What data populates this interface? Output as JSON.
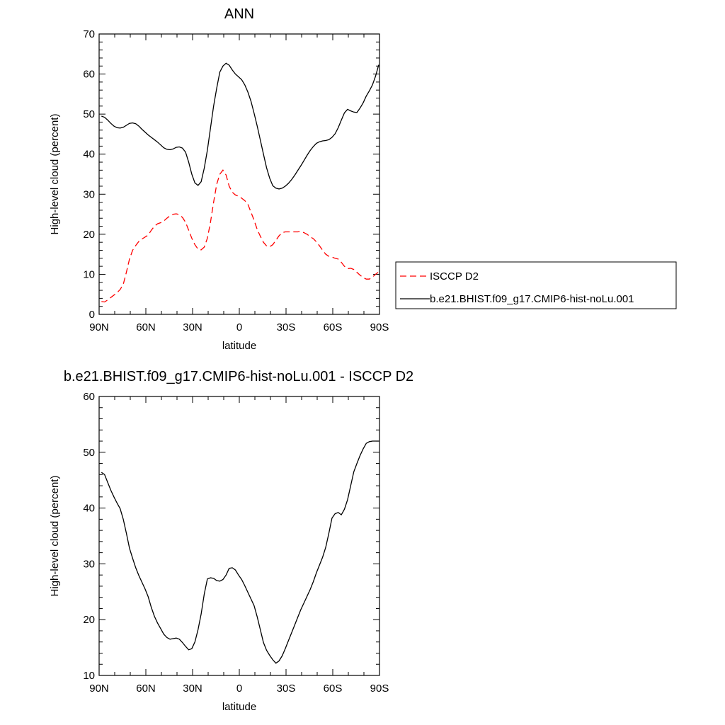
{
  "chart_data": [
    {
      "type": "line",
      "title": "ANN",
      "xlabel": "latitude",
      "ylabel": "High-level cloud (percent)",
      "xlim": [
        90,
        -90
      ],
      "ylim": [
        0,
        70
      ],
      "x_ticks": [
        90,
        60,
        30,
        0,
        -30,
        -60,
        -90
      ],
      "x_tick_labels": [
        "90N",
        "60N",
        "30N",
        "0",
        "30S",
        "60S",
        "90S"
      ],
      "y_ticks": [
        0,
        10,
        20,
        30,
        40,
        50,
        60,
        70
      ],
      "y_tick_labels": [
        "0",
        "10",
        "20",
        "30",
        "40",
        "50",
        "60",
        "70"
      ],
      "legend_position": "right",
      "x": [
        88.5,
        86.5,
        84.5,
        82.5,
        80.5,
        78.5,
        76.5,
        74.5,
        72.5,
        70.5,
        68.5,
        66.5,
        64.5,
        62.5,
        60.5,
        58.5,
        56.5,
        54.5,
        52.5,
        50.5,
        48.5,
        46.5,
        44.5,
        42.5,
        40.5,
        38.5,
        36.5,
        34.5,
        32.5,
        30.5,
        28.5,
        26.5,
        24.5,
        22.5,
        20.5,
        18.5,
        16.5,
        14.5,
        12.5,
        10.5,
        8.5,
        6.5,
        4.5,
        2.5,
        0.5,
        -1.5,
        -3.5,
        -5.5,
        -7.5,
        -9.5,
        -11.5,
        -13.5,
        -15.5,
        -17.5,
        -19.5,
        -21.5,
        -23.5,
        -25.5,
        -27.5,
        -29.5,
        -31.5,
        -33.5,
        -35.5,
        -37.5,
        -39.5,
        -41.5,
        -43.5,
        -45.5,
        -47.5,
        -49.5,
        -51.5,
        -53.5,
        -55.5,
        -57.5,
        -59.5,
        -61.5,
        -63.5,
        -65.5,
        -67.5,
        -69.5,
        -71.5,
        -73.5,
        -75.5,
        -77.5,
        -79.5,
        -81.5,
        -83.5,
        -85.5,
        -87.5,
        -89.5
      ],
      "series": [
        {
          "name": "ISCCP D2",
          "color": "#ff0000",
          "dash": "dashed",
          "values": [
            3.2,
            3.1,
            3.6,
            4.2,
            4.8,
            5.4,
            6.2,
            7.5,
            10.5,
            13.8,
            16.0,
            17.2,
            18.2,
            18.8,
            19.3,
            19.8,
            21.0,
            22.0,
            22.6,
            22.9,
            23.3,
            24.0,
            24.6,
            25.0,
            25.1,
            24.9,
            24.2,
            23.0,
            21.0,
            19.0,
            17.4,
            16.3,
            16.1,
            16.8,
            19.0,
            23.0,
            28.0,
            32.5,
            35.0,
            36.0,
            34.8,
            32.0,
            30.5,
            29.8,
            29.5,
            29.0,
            28.4,
            27.5,
            25.5,
            23.5,
            21.2,
            19.5,
            18.0,
            17.1,
            16.9,
            17.4,
            18.5,
            19.6,
            20.4,
            20.6,
            20.6,
            20.6,
            20.6,
            20.6,
            20.7,
            20.4,
            20.0,
            19.4,
            18.9,
            18.1,
            17.1,
            16.0,
            15.0,
            14.5,
            14.3,
            14.0,
            13.8,
            13.0,
            12.0,
            11.4,
            11.5,
            11.2,
            10.5,
            9.8,
            9.2,
            8.8,
            8.8,
            9.3,
            10.0,
            10.6
          ]
        },
        {
          "name": "b.e21.BHIST.f09_g17.CMIP6-hist-noLu.001",
          "color": "#000000",
          "dash": "solid",
          "values": [
            49.5,
            49.2,
            48.5,
            47.7,
            47.0,
            46.6,
            46.5,
            46.7,
            47.2,
            47.7,
            47.8,
            47.6,
            47.0,
            46.2,
            45.5,
            44.8,
            44.2,
            43.6,
            43.0,
            42.3,
            41.6,
            41.2,
            41.1,
            41.3,
            41.7,
            41.8,
            41.5,
            40.5,
            38.0,
            35.0,
            32.8,
            32.2,
            33.1,
            36.5,
            41.0,
            46.5,
            52.0,
            56.5,
            60.5,
            62.0,
            62.7,
            62.2,
            61.0,
            60.0,
            59.3,
            58.6,
            57.3,
            55.5,
            53.2,
            50.2,
            47.0,
            43.5,
            40.0,
            36.6,
            34.0,
            32.1,
            31.5,
            31.3,
            31.5,
            32.0,
            32.7,
            33.6,
            34.7,
            35.9,
            37.1,
            38.4,
            39.7,
            40.9,
            41.9,
            42.7,
            43.1,
            43.3,
            43.4,
            43.6,
            44.2,
            45.1,
            46.6,
            48.5,
            50.3,
            51.2,
            50.8,
            50.5,
            50.4,
            51.5,
            52.8,
            54.5,
            55.8,
            57.3,
            59.5,
            62.3
          ]
        }
      ]
    },
    {
      "type": "line",
      "title": "b.e21.BHIST.f09_g17.CMIP6-hist-noLu.001 - ISCCP D2",
      "xlabel": "latitude",
      "ylabel": "High-level cloud (percent)",
      "xlim": [
        90,
        -90
      ],
      "ylim": [
        10,
        60
      ],
      "x_ticks": [
        90,
        60,
        30,
        0,
        -30,
        -60,
        -90
      ],
      "x_tick_labels": [
        "90N",
        "60N",
        "30N",
        "0",
        "30S",
        "60S",
        "90S"
      ],
      "y_ticks": [
        10,
        20,
        30,
        40,
        50,
        60
      ],
      "y_tick_labels": [
        "10",
        "20",
        "30",
        "40",
        "50",
        "60"
      ],
      "x": [
        88.5,
        86.5,
        84.5,
        82.5,
        80.5,
        78.5,
        76.5,
        74.5,
        72.5,
        70.5,
        68.5,
        66.5,
        64.5,
        62.5,
        60.5,
        58.5,
        56.5,
        54.5,
        52.5,
        50.5,
        48.5,
        46.5,
        44.5,
        42.5,
        40.5,
        38.5,
        36.5,
        34.5,
        32.5,
        30.5,
        28.5,
        26.5,
        24.5,
        22.5,
        20.5,
        18.5,
        16.5,
        14.5,
        12.5,
        10.5,
        8.5,
        6.5,
        4.5,
        2.5,
        0.5,
        -1.5,
        -3.5,
        -5.5,
        -7.5,
        -9.5,
        -11.5,
        -13.5,
        -15.5,
        -17.5,
        -19.5,
        -21.5,
        -23.5,
        -25.5,
        -27.5,
        -29.5,
        -31.5,
        -33.5,
        -35.5,
        -37.5,
        -39.5,
        -41.5,
        -43.5,
        -45.5,
        -47.5,
        -49.5,
        -51.5,
        -53.5,
        -55.5,
        -57.5,
        -59.5,
        -61.5,
        -63.5,
        -65.5,
        -67.5,
        -69.5,
        -71.5,
        -73.5,
        -75.5,
        -77.5,
        -79.5,
        -81.5,
        -83.5,
        -85.5,
        -87.5,
        -89.5
      ],
      "series": [
        {
          "color": "#000000",
          "dash": "solid",
          "values": [
            46.4,
            46.0,
            44.6,
            43.2,
            42.0,
            40.9,
            39.9,
            38.0,
            35.5,
            32.8,
            31.0,
            29.3,
            27.9,
            26.7,
            25.5,
            24.1,
            22.2,
            20.6,
            19.4,
            18.4,
            17.4,
            16.8,
            16.5,
            16.6,
            16.7,
            16.5,
            15.9,
            15.2,
            14.6,
            14.8,
            16.0,
            18.2,
            21.0,
            24.6,
            27.3,
            27.5,
            27.4,
            27.0,
            26.9,
            27.2,
            28.0,
            29.2,
            29.3,
            28.9,
            28.0,
            27.2,
            26.1,
            24.9,
            23.7,
            22.5,
            20.5,
            18.2,
            15.9,
            14.5,
            13.6,
            12.8,
            12.2,
            12.6,
            13.5,
            14.8,
            16.2,
            17.6,
            19.0,
            20.4,
            21.8,
            23.0,
            24.2,
            25.4,
            26.8,
            28.4,
            29.8,
            31.2,
            33.0,
            35.5,
            38.2,
            39.0,
            39.2,
            38.8,
            39.8,
            41.5,
            44.0,
            46.5,
            48.0,
            49.4,
            50.6,
            51.6,
            51.9,
            52.0,
            52.0,
            52.0
          ]
        }
      ]
    }
  ]
}
